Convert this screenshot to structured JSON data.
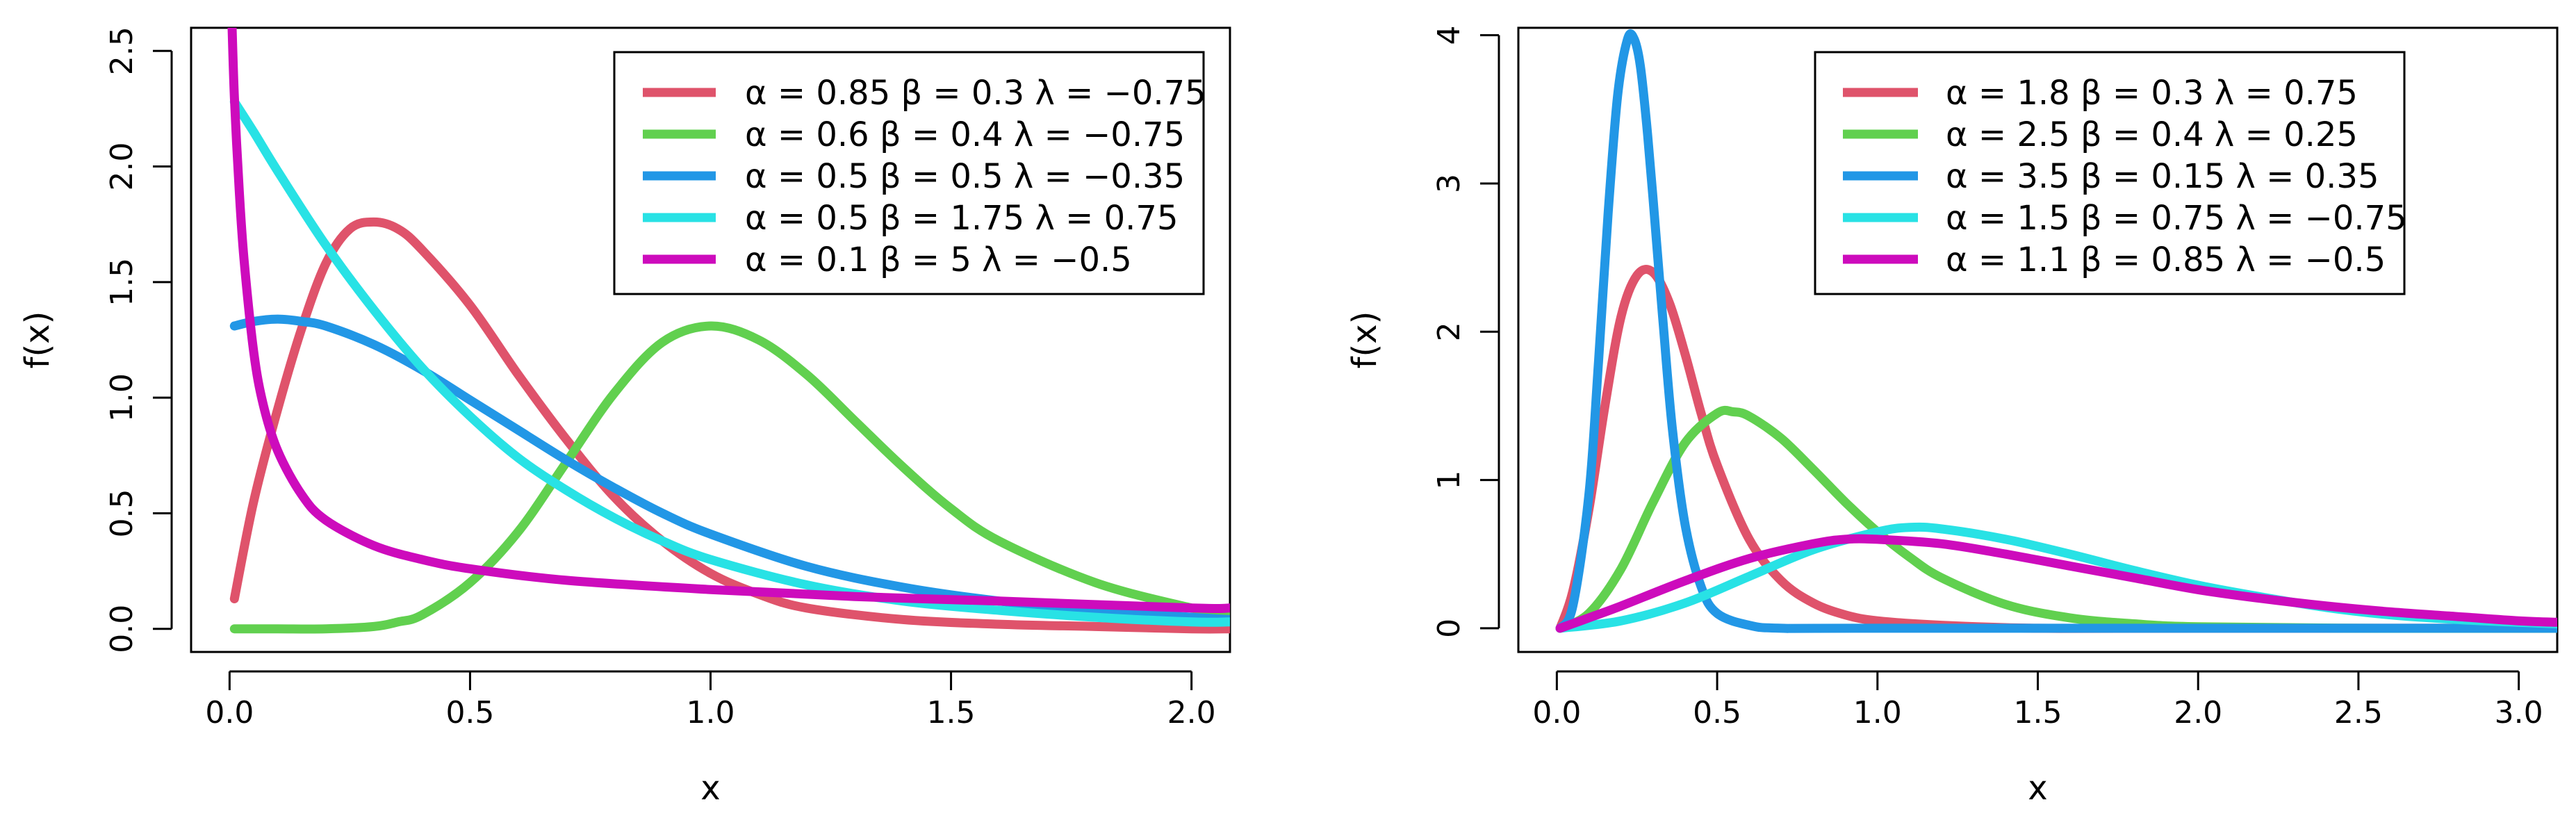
{
  "chart_data": [
    {
      "type": "line",
      "title": "",
      "xlabel": "x",
      "ylabel": "f(x)",
      "xlim": [
        -0.08,
        2.08
      ],
      "ylim": [
        -0.1,
        2.6
      ],
      "x_ticks": [
        0.0,
        0.5,
        1.0,
        1.5,
        2.0
      ],
      "x_tick_labels": [
        "0.0",
        "0.5",
        "1.0",
        "1.5",
        "2.0"
      ],
      "y_ticks": [
        0.0,
        0.5,
        1.0,
        1.5,
        2.0,
        2.5
      ],
      "y_tick_labels": [
        "0.0",
        "0.5",
        "1.0",
        "1.5",
        "2.0",
        "2.5"
      ],
      "grid": false,
      "legend_position": "top-right",
      "series": [
        {
          "name": "α = 0.85  β = 0.3  λ = −0.75",
          "color": "#DF536B",
          "x": [
            0.01,
            0.05,
            0.1,
            0.15,
            0.2,
            0.25,
            0.3,
            0.35,
            0.4,
            0.5,
            0.6,
            0.7,
            0.8,
            0.9,
            1.0,
            1.1,
            1.2,
            1.4,
            1.6,
            1.8,
            2.0,
            2.08
          ],
          "y": [
            0.13,
            0.55,
            0.95,
            1.3,
            1.58,
            1.73,
            1.76,
            1.73,
            1.64,
            1.4,
            1.1,
            0.82,
            0.57,
            0.38,
            0.24,
            0.15,
            0.09,
            0.04,
            0.02,
            0.01,
            0.0,
            0.0
          ]
        },
        {
          "name": "α = 0.6  β = 0.4  λ = −0.75",
          "color": "#61D04F",
          "x": [
            0.01,
            0.1,
            0.2,
            0.3,
            0.35,
            0.4,
            0.5,
            0.6,
            0.7,
            0.8,
            0.9,
            1.0,
            1.1,
            1.2,
            1.3,
            1.4,
            1.5,
            1.6,
            1.8,
            2.0,
            2.08
          ],
          "y": [
            0.0,
            0.0,
            0.0,
            0.01,
            0.03,
            0.06,
            0.2,
            0.42,
            0.72,
            1.02,
            1.24,
            1.31,
            1.25,
            1.1,
            0.9,
            0.7,
            0.52,
            0.38,
            0.2,
            0.09,
            0.06
          ]
        },
        {
          "name": "α = 0.5  β = 0.5  λ = −0.35",
          "color": "#2297E6",
          "x": [
            0.01,
            0.05,
            0.1,
            0.15,
            0.2,
            0.3,
            0.4,
            0.5,
            0.6,
            0.7,
            0.8,
            0.9,
            1.0,
            1.2,
            1.4,
            1.6,
            1.8,
            2.0,
            2.08
          ],
          "y": [
            1.31,
            1.33,
            1.34,
            1.33,
            1.31,
            1.23,
            1.12,
            0.99,
            0.86,
            0.73,
            0.61,
            0.5,
            0.41,
            0.27,
            0.18,
            0.12,
            0.08,
            0.05,
            0.04
          ]
        },
        {
          "name": "α = 0.5  β = 1.75  λ = 0.75",
          "color": "#28E2E5",
          "x": [
            0.01,
            0.05,
            0.1,
            0.2,
            0.3,
            0.4,
            0.5,
            0.6,
            0.7,
            0.8,
            0.9,
            1.0,
            1.2,
            1.4,
            1.6,
            1.8,
            2.0,
            2.08
          ],
          "y": [
            2.28,
            2.15,
            1.98,
            1.66,
            1.38,
            1.13,
            0.92,
            0.74,
            0.6,
            0.48,
            0.38,
            0.3,
            0.19,
            0.12,
            0.08,
            0.05,
            0.03,
            0.03
          ]
        },
        {
          "name": "α = 0.1  β = 5  λ = −0.5",
          "color": "#CD0BBC",
          "x": [
            0.005,
            0.01,
            0.02,
            0.03,
            0.05,
            0.07,
            0.1,
            0.15,
            0.2,
            0.3,
            0.4,
            0.5,
            0.7,
            1.0,
            1.3,
            1.6,
            2.0,
            2.08
          ],
          "y": [
            2.62,
            2.3,
            1.9,
            1.6,
            1.2,
            0.97,
            0.77,
            0.58,
            0.47,
            0.36,
            0.3,
            0.26,
            0.21,
            0.17,
            0.14,
            0.12,
            0.09,
            0.09
          ]
        }
      ]
    },
    {
      "type": "line",
      "title": "",
      "xlabel": "x",
      "ylabel": "f(x)",
      "xlim": [
        -0.12,
        3.12
      ],
      "ylim": [
        -0.16,
        4.05
      ],
      "x_ticks": [
        0.0,
        0.5,
        1.0,
        1.5,
        2.0,
        2.5,
        3.0
      ],
      "x_tick_labels": [
        "0.0",
        "0.5",
        "1.0",
        "1.5",
        "2.0",
        "2.5",
        "3.0"
      ],
      "y_ticks": [
        0,
        1,
        2,
        3,
        4
      ],
      "y_tick_labels": [
        "0",
        "1",
        "2",
        "3",
        "4"
      ],
      "grid": false,
      "legend_position": "top-right",
      "series": [
        {
          "name": "α = 1.8  β = 0.3  λ = 0.75",
          "color": "#DF536B",
          "x": [
            0.01,
            0.05,
            0.1,
            0.15,
            0.2,
            0.25,
            0.3,
            0.35,
            0.4,
            0.45,
            0.5,
            0.6,
            0.7,
            0.8,
            0.9,
            1.0,
            1.2,
            1.5,
            2.0,
            3.12
          ],
          "y": [
            0.0,
            0.25,
            0.8,
            1.5,
            2.1,
            2.38,
            2.4,
            2.2,
            1.85,
            1.45,
            1.1,
            0.6,
            0.32,
            0.17,
            0.09,
            0.05,
            0.02,
            0.0,
            0.0,
            0.0
          ]
        },
        {
          "name": "α = 2.5  β = 0.4  λ = 0.25",
          "color": "#61D04F",
          "x": [
            0.01,
            0.1,
            0.2,
            0.3,
            0.4,
            0.5,
            0.55,
            0.6,
            0.7,
            0.8,
            0.9,
            1.0,
            1.1,
            1.2,
            1.4,
            1.6,
            1.8,
            2.0,
            2.5,
            3.12
          ],
          "y": [
            0.0,
            0.1,
            0.4,
            0.85,
            1.25,
            1.45,
            1.46,
            1.43,
            1.28,
            1.07,
            0.85,
            0.65,
            0.48,
            0.34,
            0.16,
            0.07,
            0.03,
            0.01,
            0.0,
            0.0
          ]
        },
        {
          "name": "α = 3.5  β = 0.15  λ = 0.35",
          "color": "#2297E6",
          "x": [
            0.01,
            0.05,
            0.1,
            0.13,
            0.16,
            0.19,
            0.22,
            0.24,
            0.26,
            0.28,
            0.3,
            0.33,
            0.36,
            0.4,
            0.45,
            0.5,
            0.6,
            0.7,
            1.0,
            3.12
          ],
          "y": [
            0.0,
            0.15,
            0.9,
            1.8,
            2.8,
            3.6,
            3.97,
            3.98,
            3.8,
            3.4,
            2.9,
            2.1,
            1.35,
            0.7,
            0.28,
            0.1,
            0.02,
            0.0,
            0.0,
            0.0
          ]
        },
        {
          "name": "α = 1.5  β = 0.75  λ = −0.75",
          "color": "#28E2E5",
          "x": [
            0.01,
            0.2,
            0.4,
            0.6,
            0.8,
            1.0,
            1.1,
            1.2,
            1.4,
            1.6,
            1.8,
            2.0,
            2.2,
            2.4,
            2.6,
            2.8,
            3.0,
            3.12
          ],
          "y": [
            0.0,
            0.05,
            0.17,
            0.35,
            0.53,
            0.65,
            0.68,
            0.67,
            0.6,
            0.5,
            0.39,
            0.29,
            0.21,
            0.14,
            0.09,
            0.06,
            0.04,
            0.03
          ]
        },
        {
          "name": "α = 1.1  β = 0.85  λ = −0.5",
          "color": "#CD0BBC",
          "x": [
            0.01,
            0.1,
            0.2,
            0.4,
            0.6,
            0.8,
            0.9,
            1.0,
            1.2,
            1.4,
            1.6,
            1.8,
            2.0,
            2.2,
            2.4,
            2.6,
            2.8,
            3.0,
            3.12
          ],
          "y": [
            0.0,
            0.07,
            0.15,
            0.32,
            0.47,
            0.57,
            0.6,
            0.6,
            0.57,
            0.5,
            0.42,
            0.34,
            0.26,
            0.2,
            0.15,
            0.11,
            0.08,
            0.05,
            0.04
          ]
        }
      ]
    }
  ]
}
